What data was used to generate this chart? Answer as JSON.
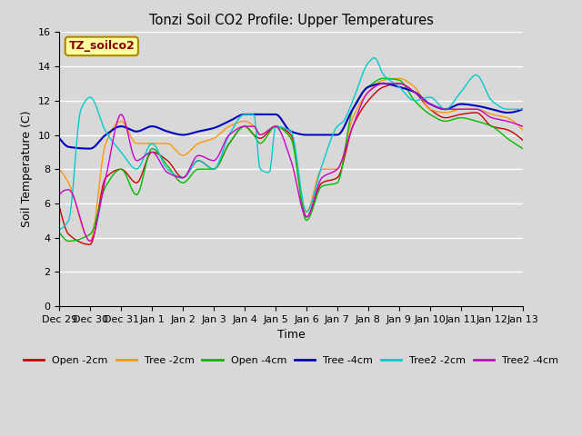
{
  "title": "Tonzi Soil CO2 Profile: Upper Temperatures",
  "xlabel": "Time",
  "ylabel": "Soil Temperature (C)",
  "ylim": [
    0,
    16
  ],
  "yticks": [
    0,
    2,
    4,
    6,
    8,
    10,
    12,
    14,
    16
  ],
  "background_color": "#d8d8d8",
  "plot_bg_color": "#d8d8d8",
  "series": [
    {
      "label": "Open -2cm",
      "color": "#cc0000",
      "lw": 1.0
    },
    {
      "label": "Tree -2cm",
      "color": "#ff9900",
      "lw": 1.0
    },
    {
      "label": "Open -4cm",
      "color": "#00bb00",
      "lw": 1.0
    },
    {
      "label": "Tree -4cm",
      "color": "#0000bb",
      "lw": 1.5
    },
    {
      "label": "Tree2 -2cm",
      "color": "#00cccc",
      "lw": 1.0
    },
    {
      "label": "Tree2 -4cm",
      "color": "#cc00cc",
      "lw": 1.0
    }
  ],
  "annotation_text": "TZ_soilco2",
  "annotation_color": "#8b0000",
  "annotation_bg": "#ffffa0",
  "annotation_border": "#aa8800",
  "day_labels": [
    "Dec 29",
    "Dec 30",
    "Dec 31",
    "Jan 1",
    "Jan 2",
    "Jan 3",
    "Jan 4",
    "Jan 5",
    "Jan 6",
    "Jan 7",
    "Jan 8",
    "Jan 9",
    "Jan 10",
    "Jan 11",
    "Jan 12",
    "Jan 13"
  ],
  "n_days": 16
}
